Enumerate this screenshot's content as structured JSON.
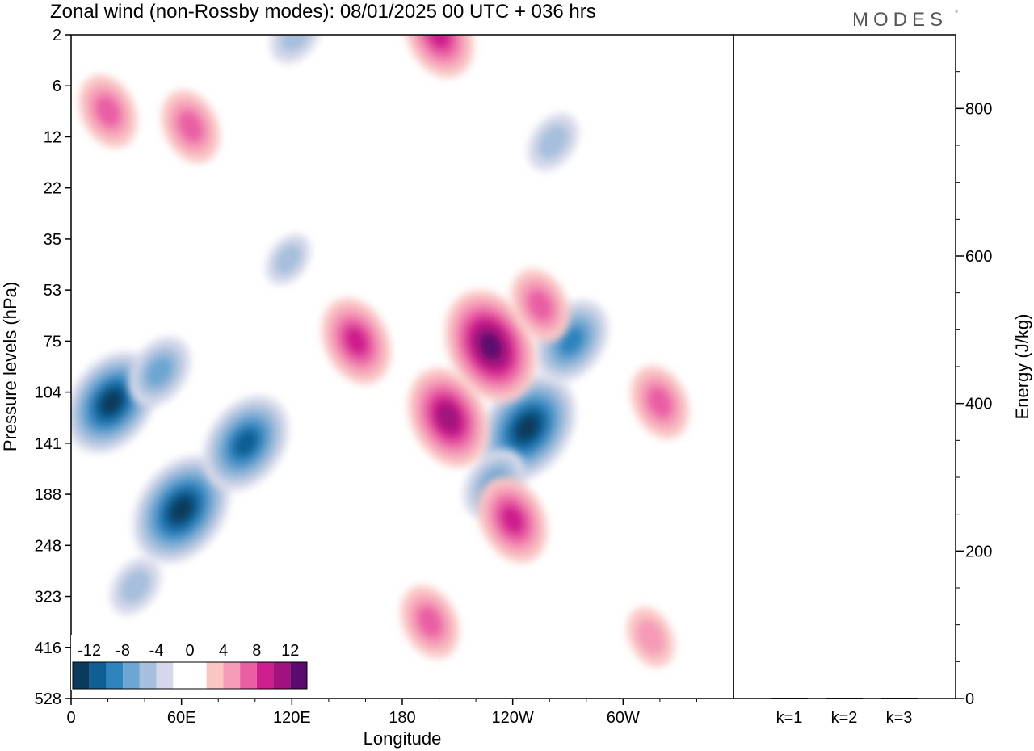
{
  "title": "Zonal wind (non-Rossby modes):  08/01/2025  00 UTC  + 036 hrs",
  "logo": "MODES",
  "chart_data": [
    {
      "type": "heatmap",
      "xlabel": "Longitude",
      "ylabel": "Pressure levels (hPa)",
      "x_ticks": [
        "0",
        "60E",
        "120E",
        "180",
        "120W",
        "60W"
      ],
      "y_ticks": [
        "2",
        "6",
        "12",
        "22",
        "35",
        "53",
        "75",
        "104",
        "141",
        "188",
        "248",
        "323",
        "416",
        "528"
      ],
      "colorbar": {
        "labels": [
          "-12",
          "-8",
          "-4",
          "0",
          "4",
          "8",
          "12"
        ],
        "colors": [
          "#0b3b5c",
          "#0f5f94",
          "#2f84be",
          "#6da6d2",
          "#a6bfdc",
          "#d5d8ea",
          "#ffffff",
          "#ffffff",
          "#f9c6c4",
          "#f59bb8",
          "#ea5ea4",
          "#cf1f8e",
          "#a0127d",
          "#5c0a6e"
        ]
      },
      "features": [
        {
          "lon": 22,
          "lev": 7.2,
          "value": -11
        },
        {
          "lon": 48,
          "lev": 6.6,
          "value": -6
        },
        {
          "lon": 60,
          "lev": 9.3,
          "value": -12
        },
        {
          "lon": 95,
          "lev": 8.0,
          "value": -10
        },
        {
          "lon": 35,
          "lev": 10.8,
          "value": -4
        },
        {
          "lon": 122,
          "lev": 0.0,
          "value": -4
        },
        {
          "lon": 248,
          "lev": 7.7,
          "value": -12
        },
        {
          "lon": 272,
          "lev": 6.0,
          "value": -8
        },
        {
          "lon": 230,
          "lev": 8.8,
          "value": -6
        },
        {
          "lon": 262,
          "lev": 2.1,
          "value": -4
        },
        {
          "lon": 118,
          "lev": 4.4,
          "value": -3
        },
        {
          "lon": 20,
          "lev": 1.5,
          "value": 6
        },
        {
          "lon": 65,
          "lev": 1.8,
          "value": 6
        },
        {
          "lon": 155,
          "lev": 6.0,
          "value": 8
        },
        {
          "lon": 205,
          "lev": 7.5,
          "value": 10
        },
        {
          "lon": 228,
          "lev": 6.1,
          "value": 12
        },
        {
          "lon": 255,
          "lev": 5.3,
          "value": 6
        },
        {
          "lon": 240,
          "lev": 9.5,
          "value": 8
        },
        {
          "lon": 195,
          "lev": 11.5,
          "value": 6
        },
        {
          "lon": 200,
          "lev": 0.0,
          "value": 8
        },
        {
          "lon": 315,
          "lev": 11.8,
          "value": 4
        },
        {
          "lon": 320,
          "lev": 7.2,
          "value": 6
        }
      ]
    },
    {
      "type": "bar",
      "categories": [
        "k=1",
        "k=2",
        "k=3"
      ],
      "values": [
        1,
        1,
        1
      ],
      "ylabel": "Energy (J/kg)",
      "ylim": [
        0,
        900
      ],
      "y_ticks": [
        0,
        200,
        400,
        600,
        800
      ]
    }
  ]
}
